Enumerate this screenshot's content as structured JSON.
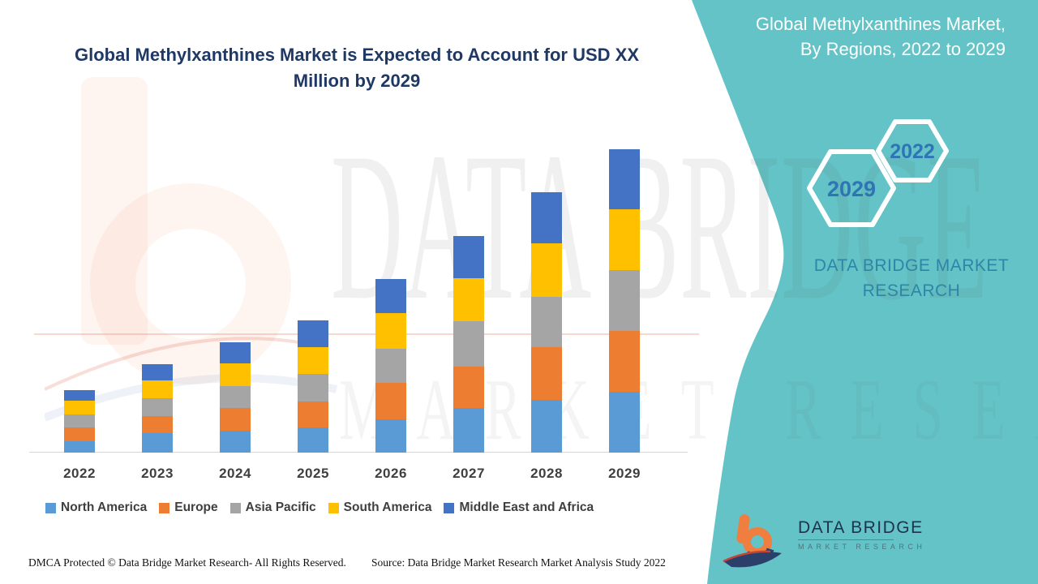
{
  "title": "Global Methylxanthines Market is Expected to Account for USD XX Million by 2029",
  "side_panel": {
    "heading": "Global Methylxanthines Market, By Regions, 2022 to 2029",
    "brand_text": "DATA BRIDGE MARKET RESEARCH",
    "hexagon_large_label": "2029",
    "hexagon_small_label": "2022",
    "teal_color": "#63C3C6",
    "hex_number_color": "#2F74B5"
  },
  "watermark": {
    "line1": "DATA BRIDGE",
    "line2": "MARKET RESEARCH"
  },
  "chart_data": {
    "type": "bar",
    "stacked": true,
    "title": "Global Methylxanthines Market is Expected to Account for USD XX Million by 2029",
    "xlabel": "",
    "ylabel": "",
    "units": "USD XX Million (actual values not disclosed in chart; series values are estimated relative units from bar heights)",
    "y_axis_visible": false,
    "grid": false,
    "legend_position": "bottom",
    "categories": [
      "2022",
      "2023",
      "2024",
      "2025",
      "2026",
      "2027",
      "2028",
      "2029"
    ],
    "series": [
      {
        "name": "North America",
        "color": "#5B9BD5",
        "values": [
          14,
          24,
          27,
          31,
          41,
          55,
          65,
          75
        ]
      },
      {
        "name": "Europe",
        "color": "#ED7D31",
        "values": [
          17,
          21,
          28,
          32,
          45,
          51,
          65,
          75
        ]
      },
      {
        "name": "Asia Pacific",
        "color": "#A5A5A5",
        "values": [
          16,
          22,
          27,
          34,
          42,
          56,
          62,
          75
        ]
      },
      {
        "name": "South America",
        "color": "#FFC000",
        "values": [
          17,
          22,
          28,
          33,
          44,
          53,
          66,
          75
        ]
      },
      {
        "name": "Middle East and Africa",
        "color": "#4472C4",
        "values": [
          13,
          20,
          26,
          33,
          42,
          52,
          63,
          74
        ]
      }
    ],
    "totals": [
      77,
      109,
      136,
      163,
      214,
      267,
      321,
      374
    ]
  },
  "footer": {
    "left": "DMCA Protected © Data Bridge Market Research- All Rights Reserved.",
    "right": "Source: Data Bridge Market Research Market Analysis Study 2022"
  },
  "logo": {
    "name": "DATA BRIDGE",
    "subtitle": "MARKET RESEARCH"
  }
}
